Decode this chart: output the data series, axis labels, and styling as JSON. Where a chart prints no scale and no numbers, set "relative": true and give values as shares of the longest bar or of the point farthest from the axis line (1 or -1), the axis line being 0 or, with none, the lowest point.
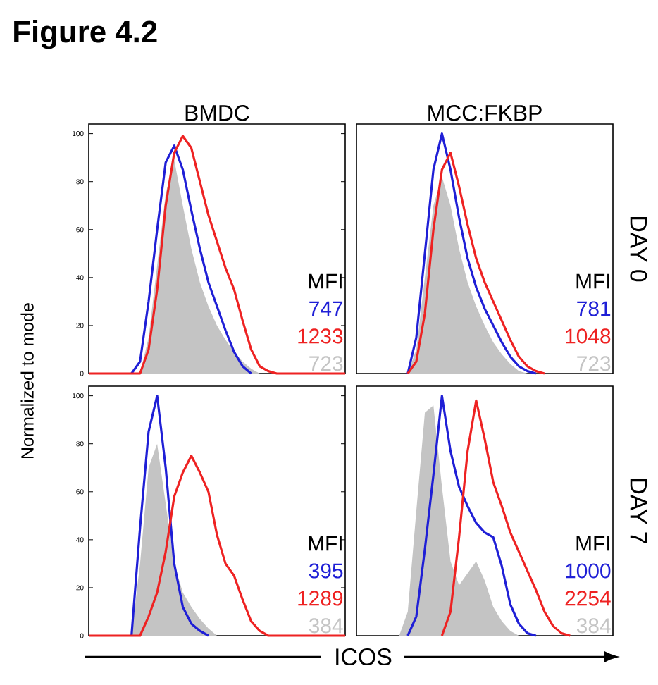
{
  "chart_data": [
    {
      "type": "line",
      "title": "Figure 4.2",
      "subtitle": "BMDC",
      "ylabel": "Normalized to mode",
      "categories": [
        null,
        null,
        null,
        null,
        null,
        null,
        null,
        null,
        null,
        null,
        null,
        null,
        null,
        null,
        null,
        null,
        null,
        null,
        null,
        null,
        null,
        null,
        null,
        null,
        null,
        null,
        null,
        null,
        null,
        null,
        null
      ],
      "series": [
        {
          "color": "#1f1fd6",
          "values": [
            null,
            null,
            null,
            null,
            null,
            0,
            5,
            30,
            60,
            88,
            95,
            85,
            68,
            52,
            38,
            28,
            18,
            9,
            3,
            0,
            null,
            null,
            null,
            null,
            null,
            null,
            null,
            null,
            null,
            null,
            null
          ]
        },
        {
          "color": "#ee2222",
          "values": [
            0,
            0,
            0,
            0,
            0,
            0,
            0,
            10,
            35,
            70,
            92,
            99,
            94,
            80,
            66,
            55,
            44,
            35,
            22,
            10,
            3,
            1,
            0,
            0,
            0,
            0,
            0,
            0,
            0,
            0,
            0
          ]
        },
        {
          "type": "area",
          "color": "#c4c4c4",
          "values": [
            null,
            null,
            null,
            null,
            null,
            null,
            0,
            15,
            45,
            75,
            89,
            70,
            52,
            38,
            28,
            20,
            14,
            9,
            5,
            2,
            0,
            null,
            null,
            null,
            null,
            null,
            null,
            null,
            null,
            null,
            null
          ]
        }
      ],
      "annotations": [
        "MFI",
        "747",
        "1233",
        "723"
      ],
      "ylim": [
        0,
        104
      ],
      "yticks": [
        0,
        20,
        40,
        60,
        80,
        100
      ],
      "tick_labels": "y"
    },
    {
      "type": "line",
      "subtitle": "MCC:FKBP",
      "y2label": "DAY 0",
      "relative": true,
      "categories": [
        null,
        null,
        null,
        null,
        null,
        null,
        null,
        null,
        null,
        null,
        null,
        null,
        null,
        null,
        null,
        null,
        null,
        null,
        null,
        null,
        null,
        null,
        null,
        null,
        null,
        null,
        null,
        null,
        null,
        null,
        null
      ],
      "series": [
        {
          "color": "#1f1fd6",
          "values": [
            null,
            null,
            null,
            null,
            null,
            null,
            0,
            0.15,
            0.5,
            0.85,
            1,
            0.85,
            0.65,
            0.48,
            0.36,
            0.27,
            0.2,
            0.13,
            0.07,
            0.03,
            0.01,
            0,
            null,
            null,
            null,
            null,
            null,
            null,
            null,
            null,
            null
          ]
        },
        {
          "color": "#ee2222",
          "values": [
            null,
            null,
            null,
            null,
            null,
            null,
            0,
            0.05,
            0.25,
            0.6,
            0.85,
            0.92,
            0.78,
            0.62,
            0.48,
            0.38,
            0.3,
            0.22,
            0.14,
            0.07,
            0.03,
            0.01,
            0,
            null,
            null,
            null,
            null,
            null,
            null,
            null,
            null
          ]
        },
        {
          "type": "area",
          "color": "#c4c4c4",
          "values": [
            null,
            null,
            null,
            null,
            null,
            null,
            0,
            0.1,
            0.4,
            0.7,
            0.82,
            0.7,
            0.52,
            0.38,
            0.28,
            0.2,
            0.13,
            0.08,
            0.04,
            0.01,
            0,
            null,
            null,
            null,
            null,
            null,
            null,
            null,
            null,
            null,
            null
          ]
        }
      ],
      "annotations": [
        "MFI",
        "781",
        "1048",
        "723"
      ],
      "tick_labels": false
    },
    {
      "type": "line",
      "xlabel": "ICOS",
      "categories": [
        null,
        null,
        null,
        null,
        null,
        null,
        null,
        null,
        null,
        null,
        null,
        null,
        null,
        null,
        null,
        null,
        null,
        null,
        null,
        null,
        null,
        null,
        null,
        null,
        null,
        null,
        null,
        null,
        null,
        null,
        null
      ],
      "series": [
        {
          "color": "#1f1fd6",
          "values": [
            null,
            null,
            null,
            null,
            null,
            0,
            45,
            85,
            100,
            70,
            30,
            12,
            5,
            2,
            0,
            null,
            null,
            null,
            null,
            null,
            null,
            null,
            null,
            null,
            null,
            null,
            null,
            null,
            null,
            null,
            null
          ]
        },
        {
          "color": "#ee2222",
          "values": [
            0,
            0,
            0,
            0,
            0,
            0,
            0,
            8,
            18,
            35,
            58,
            68,
            75,
            68,
            60,
            42,
            30,
            25,
            15,
            6,
            2,
            0,
            0,
            0,
            0,
            0,
            0,
            0,
            0,
            0,
            0
          ]
        },
        {
          "type": "area",
          "color": "#c4c4c4",
          "values": [
            null,
            null,
            null,
            null,
            null,
            0,
            30,
            70,
            80,
            55,
            30,
            18,
            12,
            7,
            3,
            0,
            null,
            null,
            null,
            null,
            null,
            null,
            null,
            null,
            null,
            null,
            null,
            null,
            null,
            null,
            null
          ]
        }
      ],
      "annotations": [
        "MFI",
        "395",
        "1289",
        "384"
      ],
      "ylim": [
        0,
        104
      ],
      "yticks": [
        0,
        20,
        40,
        60,
        80,
        100
      ],
      "tick_labels": "y"
    },
    {
      "type": "line",
      "y2label": "DAY 7",
      "relative": true,
      "categories": [
        null,
        null,
        null,
        null,
        null,
        null,
        null,
        null,
        null,
        null,
        null,
        null,
        null,
        null,
        null,
        null,
        null,
        null,
        null,
        null,
        null,
        null,
        null,
        null,
        null,
        null,
        null,
        null,
        null,
        null,
        null
      ],
      "series": [
        {
          "color": "#1f1fd6",
          "values": [
            null,
            null,
            null,
            null,
            null,
            null,
            0,
            0.08,
            0.36,
            0.67,
            1,
            0.77,
            0.62,
            0.54,
            0.47,
            0.43,
            0.41,
            0.29,
            0.13,
            0.05,
            0.01,
            0,
            null,
            null,
            null,
            null,
            null,
            null,
            null,
            null,
            null
          ]
        },
        {
          "color": "#ee2222",
          "values": [
            null,
            null,
            null,
            null,
            null,
            null,
            null,
            null,
            null,
            null,
            0,
            0.1,
            0.41,
            0.77,
            0.98,
            0.82,
            0.64,
            0.54,
            0.43,
            0.35,
            0.27,
            0.19,
            0.1,
            0.04,
            0.01,
            0,
            null,
            null,
            null,
            null,
            null
          ]
        },
        {
          "type": "area",
          "color": "#c4c4c4",
          "values": [
            null,
            null,
            null,
            null,
            null,
            0,
            0.1,
            0.52,
            0.93,
            0.96,
            0.62,
            0.31,
            0.21,
            0.26,
            0.31,
            0.23,
            0.12,
            0.06,
            0.02,
            0,
            null,
            null,
            null,
            null,
            null,
            null,
            null,
            null,
            null,
            null,
            null
          ]
        }
      ],
      "annotations": [
        "MFI",
        "1000",
        "2254",
        "384"
      ],
      "tick_labels": false
    }
  ]
}
